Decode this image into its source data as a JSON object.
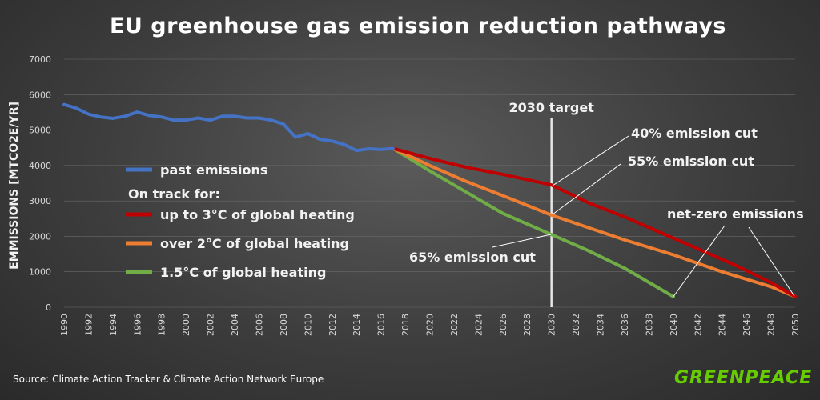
{
  "chart_data": {
    "type": "line",
    "title": "EU greenhouse gas emission reduction pathways",
    "ylabel": "EMMISSIONS [MTCO2E/YR]",
    "xlabel": "",
    "ylim": [
      0,
      7000
    ],
    "xlim": [
      1990,
      2050
    ],
    "yticks": [
      0,
      1000,
      2000,
      3000,
      4000,
      5000,
      6000,
      7000
    ],
    "xticks": [
      1990,
      1992,
      1994,
      1996,
      1998,
      2000,
      2002,
      2004,
      2006,
      2008,
      2010,
      2012,
      2014,
      2016,
      2018,
      2020,
      2022,
      2024,
      2026,
      2028,
      2030,
      2032,
      2034,
      2036,
      2038,
      2040,
      2042,
      2044,
      2046,
      2048,
      2050
    ],
    "target_year": 2030,
    "target_label": "2030 target",
    "legend_heading": "On track for:",
    "series": [
      {
        "name": "past emissions",
        "color": "#4472c4",
        "x": [
          1990,
          1991,
          1992,
          1993,
          1994,
          1995,
          1996,
          1997,
          1998,
          1999,
          2000,
          2001,
          2002,
          2003,
          2004,
          2005,
          2006,
          2007,
          2008,
          2009,
          2010,
          2011,
          2012,
          2013,
          2014,
          2015,
          2016,
          2017
        ],
        "values": [
          5720,
          5620,
          5450,
          5370,
          5330,
          5390,
          5510,
          5410,
          5370,
          5280,
          5280,
          5340,
          5280,
          5390,
          5390,
          5340,
          5340,
          5280,
          5170,
          4800,
          4900,
          4740,
          4690,
          4590,
          4420,
          4470,
          4450,
          4480
        ]
      },
      {
        "name": "up to 3°C of global heating",
        "color": "#c00000",
        "x": [
          2017,
          2020,
          2023,
          2026,
          2030,
          2033,
          2036,
          2039,
          2042,
          2045,
          2048,
          2050
        ],
        "values": [
          4480,
          4200,
          3950,
          3750,
          3450,
          2950,
          2550,
          2100,
          1650,
          1200,
          700,
          300
        ]
      },
      {
        "name": "over 2°C of global heating",
        "color": "#ed7d31",
        "x": [
          2017,
          2020,
          2023,
          2026,
          2030,
          2033,
          2036,
          2040,
          2044,
          2048,
          2050
        ],
        "values": [
          4480,
          4000,
          3550,
          3150,
          2600,
          2250,
          1900,
          1480,
          1000,
          580,
          300
        ]
      },
      {
        "name": "1.5°C of global heating",
        "color": "#70ad47",
        "x": [
          2017,
          2020,
          2023,
          2026,
          2030,
          2033,
          2036,
          2038,
          2040
        ],
        "values": [
          4480,
          3850,
          3250,
          2650,
          2050,
          1600,
          1100,
          700,
          300
        ]
      }
    ],
    "annotations": [
      {
        "text": "40% emission cut"
      },
      {
        "text": "55% emission cut"
      },
      {
        "text": "65% emission cut"
      },
      {
        "text": "net-zero emissions"
      }
    ],
    "source": "Source: Climate Action Tracker & Climate Action Network Europe",
    "brand": "GREENPEACE"
  }
}
